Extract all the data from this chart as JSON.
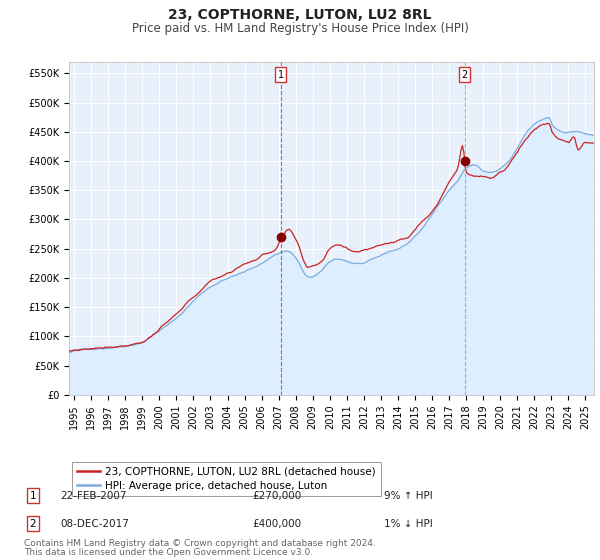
{
  "title": "23, COPTHORNE, LUTON, LU2 8RL",
  "subtitle": "Price paid vs. HM Land Registry's House Price Index (HPI)",
  "ylabel_ticks": [
    "£0",
    "£50K",
    "£100K",
    "£150K",
    "£200K",
    "£250K",
    "£300K",
    "£350K",
    "£400K",
    "£450K",
    "£500K",
    "£550K"
  ],
  "ytick_values": [
    0,
    50000,
    100000,
    150000,
    200000,
    250000,
    300000,
    350000,
    400000,
    450000,
    500000,
    550000
  ],
  "ylim": [
    0,
    570000
  ],
  "xlim_start": 1994.7,
  "xlim_end": 2025.5,
  "hpi_color": "#7aace0",
  "hpi_fill_color": "#ddeeff",
  "price_color": "#cc2222",
  "marker_color": "#880000",
  "vline1_color": "#dd4444",
  "vline2_color": "#88aacc",
  "vline1_x": 2007.12,
  "vline2_x": 2017.92,
  "marker1_x": 2007.12,
  "marker1_y": 270000,
  "marker2_x": 2017.92,
  "marker2_y": 400000,
  "legend_line1": "23, COPTHORNE, LUTON, LU2 8RL (detached house)",
  "legend_line2": "HPI: Average price, detached house, Luton",
  "ann1_label": "1",
  "ann1_date": "22-FEB-2007",
  "ann1_price": "£270,000",
  "ann1_hpi": "9% ↑ HPI",
  "ann2_label": "2",
  "ann2_date": "08-DEC-2017",
  "ann2_price": "£400,000",
  "ann2_hpi": "1% ↓ HPI",
  "footnote_line1": "Contains HM Land Registry data © Crown copyright and database right 2024.",
  "footnote_line2": "This data is licensed under the Open Government Licence v3.0.",
  "background_color": "#ffffff",
  "plot_bg_color": "#e8f0fb",
  "grid_color": "#ffffff",
  "title_fontsize": 10,
  "subtitle_fontsize": 8.5,
  "tick_fontsize": 7,
  "legend_fontsize": 7.5,
  "ann_fontsize": 7.5,
  "footnote_fontsize": 6.5
}
